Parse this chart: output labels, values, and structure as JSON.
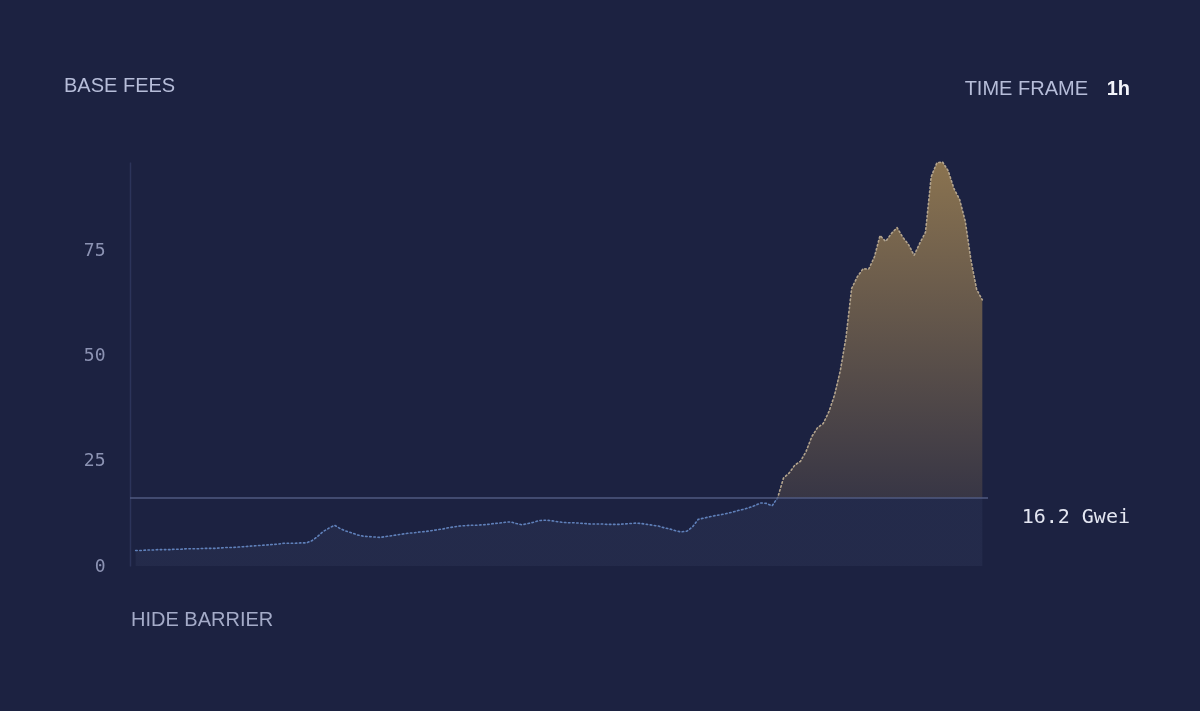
{
  "chart_data": {
    "type": "area",
    "title": "BASE FEES",
    "categories": [
      null,
      null,
      null,
      null,
      null,
      null,
      null,
      null,
      null,
      null,
      null,
      null,
      null,
      null,
      null,
      null,
      null,
      null,
      null,
      null,
      null,
      null,
      null,
      null,
      null,
      null,
      null,
      null,
      null,
      null,
      null,
      null,
      null,
      null,
      null,
      null,
      null,
      null,
      null,
      null,
      null,
      null,
      null,
      null,
      null,
      null,
      null,
      null,
      null,
      null,
      null,
      null,
      null,
      null,
      null,
      null,
      null,
      null,
      null,
      null,
      null,
      null,
      null,
      null,
      null,
      null,
      null,
      null,
      null,
      null,
      null,
      null,
      null,
      null,
      null,
      null,
      null,
      null,
      null,
      null,
      null,
      null,
      null,
      null,
      null,
      null,
      null,
      null,
      null,
      null,
      null,
      null,
      null,
      null,
      null,
      null,
      null,
      null,
      null,
      null,
      null,
      null,
      null,
      null,
      null,
      null,
      null,
      null,
      null,
      null,
      null,
      null,
      null,
      null,
      null,
      null,
      null,
      null,
      null,
      null,
      null,
      null,
      null,
      null,
      null,
      null,
      null,
      null,
      null,
      null,
      null,
      null,
      null,
      null,
      null,
      null,
      null,
      null,
      null,
      null,
      null,
      null,
      null,
      null,
      null,
      null,
      null,
      null,
      null,
      null
    ],
    "series": [
      {
        "color": "#8a7350",
        "values": [
          3.7,
          3.7,
          3.8,
          3.8,
          3.9,
          3.9,
          3.9,
          4.0,
          4.0,
          4.1,
          4.1,
          4.1,
          4.2,
          4.2,
          4.2,
          4.3,
          4.4,
          4.4,
          4.5,
          4.6,
          4.7,
          4.8,
          4.9,
          5.0,
          5.1,
          5.2,
          5.4,
          5.4,
          5.4,
          5.5,
          5.5,
          6.0,
          7.0,
          8.2,
          9.0,
          9.7,
          8.9,
          8.3,
          7.9,
          7.4,
          7.1,
          7.0,
          6.9,
          6.8,
          7.0,
          7.2,
          7.4,
          7.6,
          7.8,
          7.9,
          8.1,
          8.2,
          8.4,
          8.6,
          8.8,
          9.1,
          9.3,
          9.5,
          9.6,
          9.7,
          9.7,
          9.8,
          9.9,
          10.1,
          10.2,
          10.4,
          10.5,
          10.1,
          9.8,
          10.1,
          10.4,
          10.8,
          10.9,
          10.8,
          10.6,
          10.4,
          10.3,
          10.3,
          10.2,
          10.1,
          10.0,
          10.0,
          10.0,
          9.9,
          9.9,
          9.9,
          10.0,
          10.1,
          10.2,
          10.1,
          9.9,
          9.7,
          9.5,
          9.1,
          8.8,
          8.4,
          8.1,
          8.3,
          9.3,
          11.1,
          11.4,
          11.7,
          12.0,
          12.2,
          12.5,
          12.8,
          13.2,
          13.5,
          13.9,
          14.4,
          15.0,
          14.9,
          14.3,
          16.3,
          20.9,
          22.1,
          24.0,
          24.9,
          27.3,
          30.8,
          32.9,
          33.9,
          36.7,
          40.7,
          46.4,
          54.3,
          66,
          68.8,
          70.7,
          70.6,
          73.5,
          78.6,
          77.2,
          79.1,
          80.5,
          78.2,
          76.5,
          73.9,
          76.8,
          79.4,
          92.6,
          95.9,
          96.1,
          94.0,
          89.8,
          87.2,
          82.0,
          72.8,
          65.8,
          63.3
        ]
      }
    ],
    "ylim": [
      0,
      96.1
    ],
    "yticks": [
      0,
      25,
      50,
      75
    ],
    "tick_labels": "y",
    "grid": false,
    "line_style": "dotted",
    "ref_lines": [
      {
        "axis": "y",
        "value": 16.2,
        "label": "16.2 Gwei",
        "color": "#4f5a80"
      }
    ],
    "annotations": [
      "TIME FRAME",
      "1h",
      "HIDE BARRIER"
    ]
  }
}
